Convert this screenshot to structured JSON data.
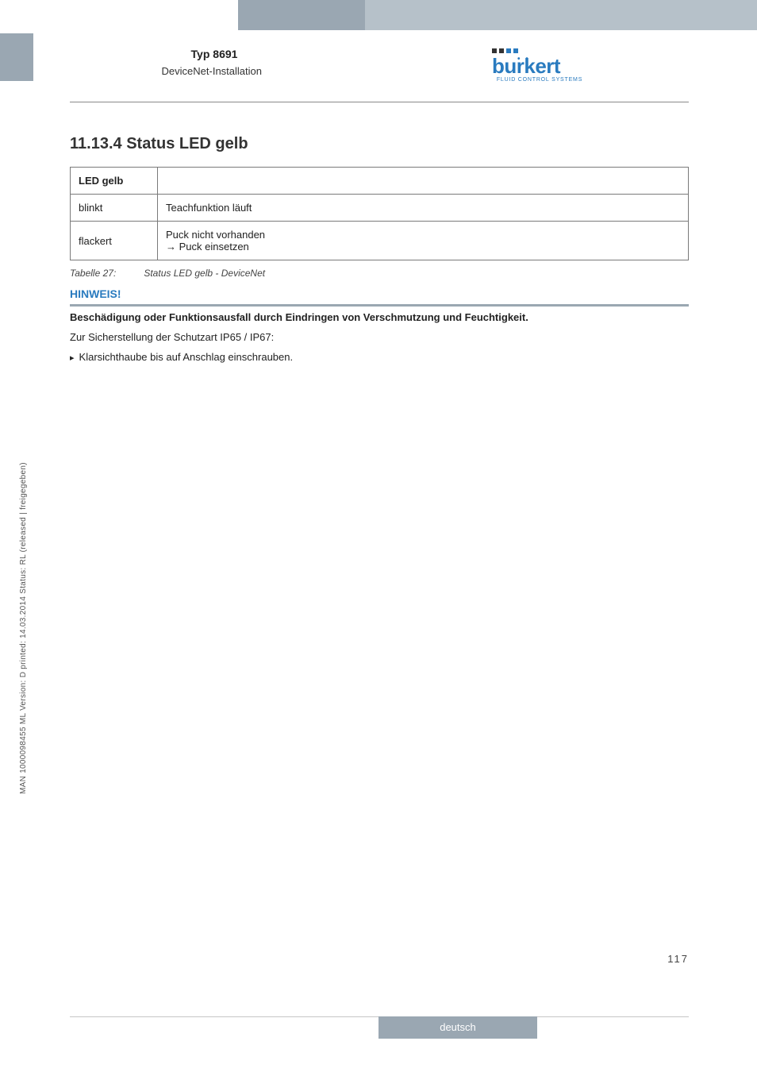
{
  "header": {
    "product_type": "Typ 8691",
    "section": "DeviceNet-Installation",
    "logo_text": "burkert",
    "logo_tagline": "FLUID CONTROL SYSTEMS"
  },
  "heading": {
    "number": "11.13.4",
    "title": "Status LED gelb"
  },
  "table": {
    "header_col1": "LED gelb",
    "header_col2": "",
    "rows": [
      {
        "c1": "blinkt",
        "c2": "Teachfunktion läuft"
      },
      {
        "c1": "flackert",
        "c2": "Puck nicht vorhanden\n→ Puck einsetzen"
      }
    ],
    "caption_label": "Tabelle 27:",
    "caption_text": "Status LED gelb - DeviceNet"
  },
  "notice": {
    "label": "HINWEIS!",
    "bold": "Beschädigung oder Funktionsausfall durch Eindringen von Verschmutzung und Feuchtigkeit.",
    "line": "Zur Sicherstellung der Schutzart IP65 / IP67:",
    "bullet": "Klarsichthaube bis auf Anschlag einschrauben."
  },
  "side_text": "MAN 1000098455 ML Version: D printed: 14.03.2014 Status: RL (released | freigegeben)",
  "footer": {
    "page_number": "117",
    "language": "deutsch"
  },
  "colors": {
    "tab_dark": "#9aa7b2",
    "tab_light": "#b6c1c9",
    "accent_blue": "#2a7bbf",
    "rule": "#8a8a8a",
    "border": "#7a7a7a"
  }
}
